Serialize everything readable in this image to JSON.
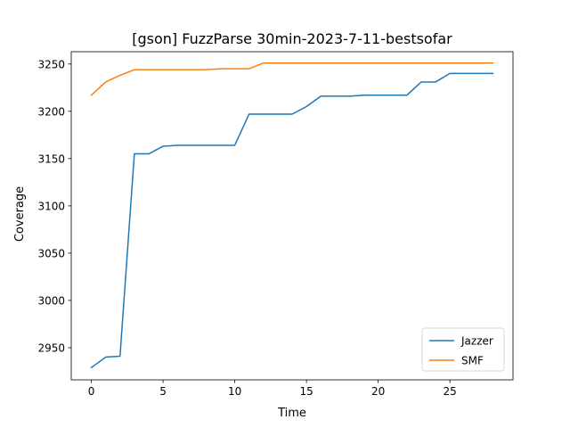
{
  "chart_data": {
    "type": "line",
    "title": "[gson] FuzzParse 30min-2023-7-11-bestsofar",
    "xlabel": "Time",
    "ylabel": "Coverage",
    "xlim": [
      -1.4,
      29.4
    ],
    "ylim": [
      2916,
      3263
    ],
    "xticks": [
      0,
      5,
      10,
      15,
      20,
      25
    ],
    "yticks": [
      2950,
      3000,
      3050,
      3100,
      3150,
      3200,
      3250
    ],
    "grid": false,
    "legend_position": "lower-right",
    "x": [
      0,
      1,
      2,
      3,
      4,
      5,
      6,
      7,
      8,
      9,
      10,
      11,
      12,
      13,
      14,
      15,
      16,
      17,
      18,
      19,
      20,
      21,
      22,
      23,
      24,
      25,
      26,
      27,
      28
    ],
    "series": [
      {
        "name": "Jazzer",
        "color": "#1f77b4",
        "values": [
          2929,
          2940,
          2941,
          3155,
          3155,
          3163,
          3164,
          3164,
          3164,
          3164,
          3164,
          3197,
          3197,
          3197,
          3197,
          3205,
          3216,
          3216,
          3216,
          3217,
          3217,
          3217,
          3217,
          3231,
          3231,
          3240,
          3240,
          3240,
          3240
        ]
      },
      {
        "name": "SMF",
        "color": "#ff7f0e",
        "values": [
          3217,
          3231,
          3238,
          3244,
          3244,
          3244,
          3244,
          3244,
          3244,
          3245,
          3245,
          3245,
          3251,
          3251,
          3251,
          3251,
          3251,
          3251,
          3251,
          3251,
          3251,
          3251,
          3251,
          3251,
          3251,
          3251,
          3251,
          3251,
          3251
        ]
      }
    ]
  }
}
